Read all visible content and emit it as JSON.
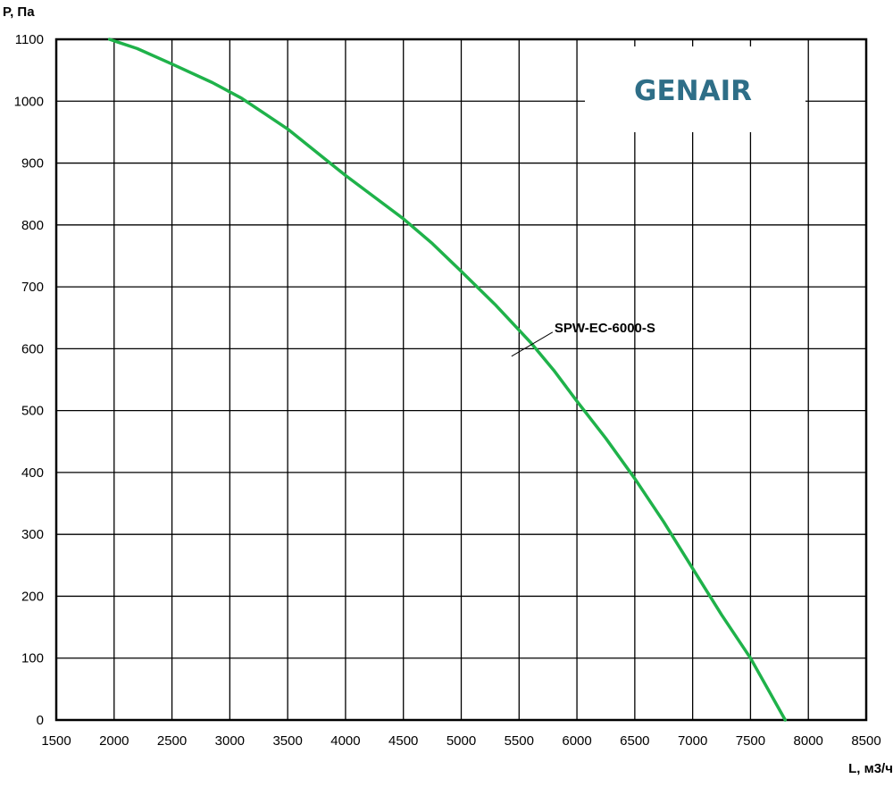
{
  "chart_data": {
    "type": "line",
    "title": "",
    "xlabel": "L, м3/ч",
    "ylabel": "P, Па",
    "xlim": [
      1500,
      8500
    ],
    "ylim": [
      0,
      1100
    ],
    "x_ticks": [
      "1500",
      "2000",
      "2500",
      "3000",
      "3500",
      "4000",
      "4500",
      "5000",
      "5500",
      "6000",
      "6500",
      "7000",
      "7500",
      "8000",
      "8500"
    ],
    "y_ticks": [
      "0",
      "100",
      "200",
      "300",
      "400",
      "500",
      "600",
      "700",
      "800",
      "900",
      "1000",
      "1100"
    ],
    "grid": true,
    "series": [
      {
        "name": "SPW-EC-6000-S",
        "color": "#1fb24a",
        "x": [
          1960,
          2200,
          2500,
          2850,
          3100,
          3300,
          3500,
          3700,
          4000,
          4250,
          4500,
          4750,
          5000,
          5300,
          5600,
          5800,
          6000,
          6250,
          6500,
          6750,
          7000,
          7250,
          7500,
          7650,
          7800
        ],
        "y": [
          1100,
          1085,
          1060,
          1030,
          1005,
          980,
          955,
          925,
          880,
          845,
          810,
          770,
          725,
          670,
          610,
          565,
          515,
          455,
          390,
          320,
          245,
          170,
          100,
          50,
          0
        ]
      }
    ],
    "annotations": [
      {
        "text": "SPW-EC-6000-S",
        "x": 5620,
        "y": 595
      }
    ],
    "logo": "GENAIR"
  }
}
